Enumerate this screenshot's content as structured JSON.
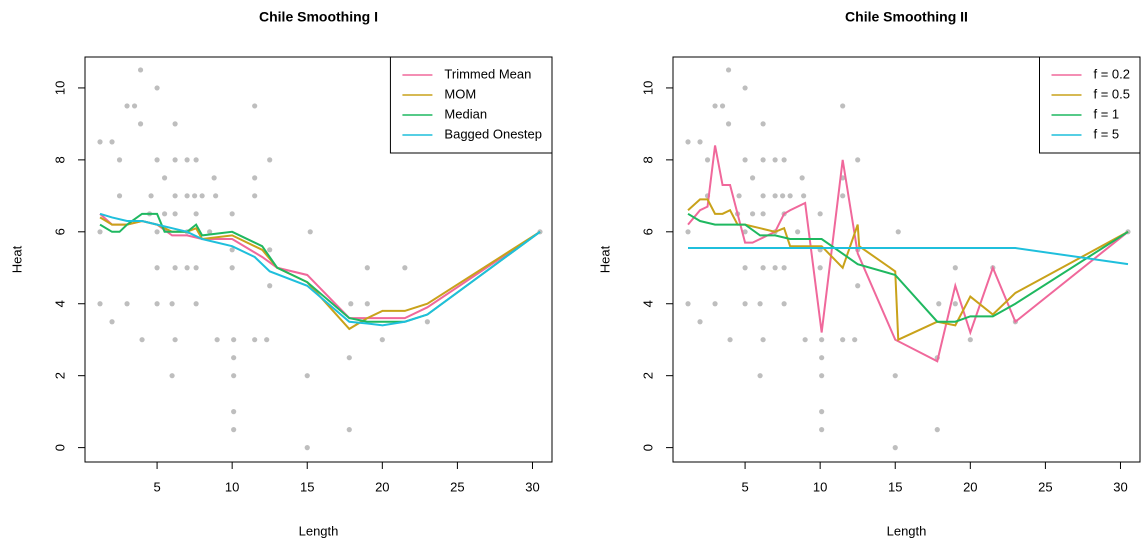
{
  "chart_data": [
    {
      "type": "line",
      "title": "Chile Smoothing I",
      "x_label": "Length",
      "y_label": "Heat",
      "xlim": [
        0.2,
        31.3
      ],
      "ylim": [
        -0.4,
        10.86
      ],
      "xticks": [
        5,
        10,
        15,
        20,
        25,
        30
      ],
      "yticks": [
        0,
        2,
        4,
        6,
        8,
        10
      ],
      "legend": "topright",
      "scatter": {
        "color": "#bebebe",
        "x": [
          1.2,
          1.2,
          1.2,
          2,
          2,
          2.5,
          2.5,
          3,
          3,
          3.5,
          3.9,
          3.9,
          4,
          4.5,
          4.6,
          5,
          5,
          5,
          5,
          5,
          5.5,
          5.5,
          6,
          6,
          6.2,
          6.2,
          6.2,
          6.2,
          6.2,
          6.2,
          7,
          7,
          7,
          7,
          7.5,
          7.6,
          7.6,
          7.6,
          7.6,
          8,
          8.5,
          8.8,
          8.9,
          9,
          10,
          10,
          10,
          10.1,
          10.1,
          10.1,
          10.1,
          10.1,
          11.5,
          11.5,
          11.5,
          11.5,
          12.5,
          12.5,
          12.5,
          12.3,
          15,
          15.2,
          15,
          17.9,
          17.8,
          17.8,
          19,
          19,
          20,
          21.5,
          23,
          30.5
        ],
        "y": [
          8.5,
          6,
          4,
          8.5,
          3.5,
          8,
          7,
          9.5,
          4,
          9.5,
          10.5,
          9,
          3,
          6.5,
          7,
          10,
          8,
          6,
          5,
          4,
          7.5,
          6.5,
          2,
          4,
          9,
          8,
          7,
          6.5,
          5,
          3,
          8,
          7,
          6,
          5,
          7,
          8,
          6.5,
          5,
          4,
          7,
          6,
          7.5,
          7,
          3,
          6.5,
          5.5,
          5,
          3,
          2.5,
          2,
          1,
          0.5,
          9.5,
          7.5,
          7,
          3,
          8,
          5.5,
          4.5,
          3,
          2,
          6,
          0,
          4,
          2.5,
          0.5,
          5,
          4,
          3,
          5,
          3.5,
          6
        ]
      },
      "series": [
        {
          "name": "Trimmed Mean",
          "color": "#f0689b",
          "x": [
            1.2,
            2,
            3,
            4,
            5,
            6,
            7,
            8,
            10,
            12,
            13,
            15,
            17.8,
            19,
            20,
            21.5,
            23,
            30.5
          ],
          "values": [
            6.5,
            6.2,
            6.2,
            6.3,
            6.2,
            5.9,
            5.9,
            5.8,
            5.8,
            5.3,
            5,
            4.8,
            3.6,
            3.6,
            3.6,
            3.6,
            3.9,
            6
          ]
        },
        {
          "name": "MOM",
          "color": "#c9a21a",
          "x": [
            1.2,
            2,
            3,
            4,
            5,
            6,
            7,
            7.6,
            8,
            10,
            12,
            13,
            15,
            17.8,
            19,
            20,
            21.5,
            23,
            30.5
          ],
          "values": [
            6.4,
            6.2,
            6.2,
            6.3,
            6.2,
            6,
            6,
            6.1,
            5.8,
            5.9,
            5.5,
            5,
            4.6,
            3.3,
            3.6,
            3.8,
            3.8,
            4,
            6
          ]
        },
        {
          "name": "Median",
          "color": "#1fb860",
          "x": [
            1.2,
            2,
            2.5,
            3,
            4,
            5,
            5.5,
            6,
            7,
            7.6,
            8,
            10,
            12,
            13,
            15,
            17.8,
            19,
            20,
            21.5,
            23,
            30.5
          ],
          "values": [
            6.2,
            6,
            6,
            6.2,
            6.5,
            6.5,
            6,
            6,
            6,
            6.2,
            5.9,
            6,
            5.6,
            5,
            4.6,
            3.6,
            3.5,
            3.5,
            3.5,
            3.7,
            6
          ]
        },
        {
          "name": "Bagged Onestep",
          "color": "#1fbfdc",
          "x": [
            1.2,
            2,
            3,
            4,
            5,
            6,
            7,
            8,
            10,
            11.5,
            12.5,
            15,
            17.8,
            19,
            20,
            21.5,
            23,
            30.5
          ],
          "values": [
            6.5,
            6.4,
            6.3,
            6.3,
            6.2,
            6.1,
            6,
            5.8,
            5.6,
            5.3,
            4.9,
            4.5,
            3.5,
            3.45,
            3.4,
            3.5,
            3.7,
            6
          ]
        }
      ]
    },
    {
      "type": "line",
      "title": "Chile Smoothing II",
      "x_label": "Length",
      "y_label": "Heat",
      "xlim": [
        0.2,
        31.3
      ],
      "ylim": [
        -0.4,
        10.86
      ],
      "xticks": [
        5,
        10,
        15,
        20,
        25,
        30
      ],
      "yticks": [
        0,
        2,
        4,
        6,
        8,
        10
      ],
      "legend": "topright",
      "scatter": {
        "color": "#bebebe",
        "x": [
          1.2,
          1.2,
          1.2,
          2,
          2,
          2.5,
          2.5,
          3,
          3,
          3.5,
          3.9,
          3.9,
          4,
          4.5,
          4.6,
          5,
          5,
          5,
          5,
          5,
          5.5,
          5.5,
          6,
          6,
          6.2,
          6.2,
          6.2,
          6.2,
          6.2,
          6.2,
          7,
          7,
          7,
          7,
          7.5,
          7.6,
          7.6,
          7.6,
          7.6,
          8,
          8.5,
          8.8,
          8.9,
          9,
          10,
          10,
          10,
          10.1,
          10.1,
          10.1,
          10.1,
          10.1,
          11.5,
          11.5,
          11.5,
          11.5,
          12.5,
          12.5,
          12.5,
          12.3,
          15,
          15.2,
          15,
          17.9,
          17.8,
          17.8,
          19,
          19,
          20,
          21.5,
          23,
          30.5
        ],
        "y": [
          8.5,
          6,
          4,
          8.5,
          3.5,
          8,
          7,
          9.5,
          4,
          9.5,
          10.5,
          9,
          3,
          6.5,
          7,
          10,
          8,
          6,
          5,
          4,
          7.5,
          6.5,
          2,
          4,
          9,
          8,
          7,
          6.5,
          5,
          3,
          8,
          7,
          6,
          5,
          7,
          8,
          6.5,
          5,
          4,
          7,
          6,
          7.5,
          7,
          3,
          6.5,
          5.5,
          5,
          3,
          2.5,
          2,
          1,
          0.5,
          9.5,
          7.5,
          7,
          3,
          8,
          5.5,
          4.5,
          3,
          2,
          6,
          0,
          4,
          2.5,
          0.5,
          5,
          4,
          3,
          5,
          3.5,
          6
        ]
      },
      "series": [
        {
          "name": "f = 0.2",
          "color": "#f0689b",
          "x": [
            1.2,
            2,
            2.5,
            3,
            3.5,
            4,
            4.5,
            5,
            5.5,
            6,
            6.5,
            7,
            7.6,
            8,
            9,
            10.1,
            11.5,
            12.5,
            15,
            17.8,
            19,
            20,
            21.5,
            23,
            30.5
          ],
          "values": [
            6.2,
            6.6,
            6.7,
            8.4,
            7.3,
            7.3,
            6.5,
            5.7,
            5.7,
            5.8,
            5.9,
            6,
            6.5,
            6.6,
            6.8,
            3.2,
            8,
            5.4,
            3,
            2.4,
            4.5,
            3.2,
            5,
            3.5,
            6
          ]
        },
        {
          "name": "f = 0.5",
          "color": "#c9a21a",
          "x": [
            1.2,
            2,
            2.5,
            3,
            3.5,
            4,
            4.5,
            5,
            6,
            7,
            7.6,
            8,
            10.1,
            11.5,
            12.5,
            12.6,
            15,
            15.2,
            17.8,
            19,
            20,
            21.5,
            23,
            30.5
          ],
          "values": [
            6.6,
            6.9,
            6.9,
            6.5,
            6.5,
            6.6,
            6.2,
            6.2,
            6.1,
            6,
            6.1,
            5.6,
            5.6,
            5,
            6.2,
            5.6,
            4.9,
            3,
            3.5,
            3.4,
            4.2,
            3.7,
            4.3,
            6
          ]
        },
        {
          "name": "f = 1",
          "color": "#1fb860",
          "x": [
            1.2,
            2,
            3,
            4,
            5,
            6,
            7,
            8,
            10.1,
            12.5,
            15,
            17.8,
            19,
            20,
            21.5,
            23,
            30.5
          ],
          "values": [
            6.5,
            6.3,
            6.2,
            6.2,
            6.2,
            5.9,
            5.9,
            5.8,
            5.8,
            5.1,
            4.8,
            3.5,
            3.5,
            3.65,
            3.65,
            4,
            6
          ]
        },
        {
          "name": "f = 5",
          "color": "#1fbfdc",
          "x": [
            1.2,
            8,
            23,
            30.5
          ],
          "values": [
            5.55,
            5.55,
            5.55,
            5.1
          ]
        }
      ]
    }
  ]
}
